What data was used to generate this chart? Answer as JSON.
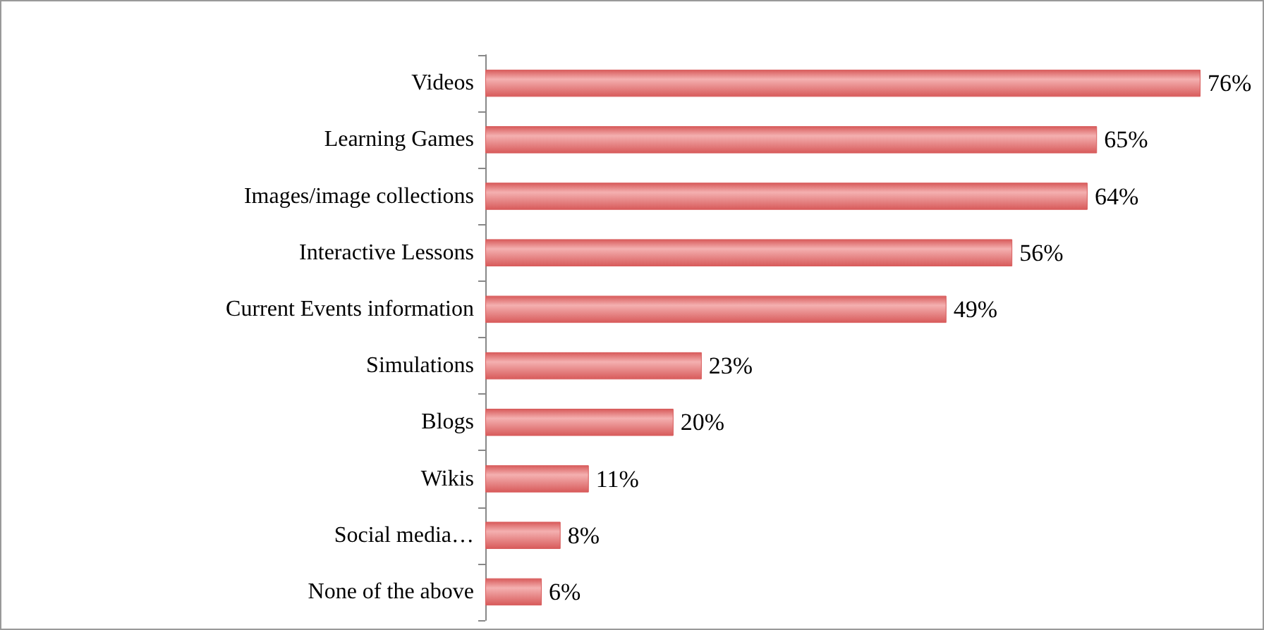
{
  "chart_data": {
    "type": "bar",
    "orientation": "horizontal",
    "categories": [
      "Videos",
      "Learning Games",
      "Images/image collections",
      "Interactive Lessons",
      "Current Events information",
      "Simulations",
      "Blogs",
      "Wikis",
      "Social media…",
      "None of the above"
    ],
    "values": [
      76,
      65,
      64,
      56,
      49,
      23,
      20,
      11,
      8,
      6
    ],
    "value_labels": [
      "76%",
      "65%",
      "64%",
      "56%",
      "49%",
      "23%",
      "20%",
      "11%",
      "8%",
      "6%"
    ],
    "color": "#d85b5b"
  }
}
